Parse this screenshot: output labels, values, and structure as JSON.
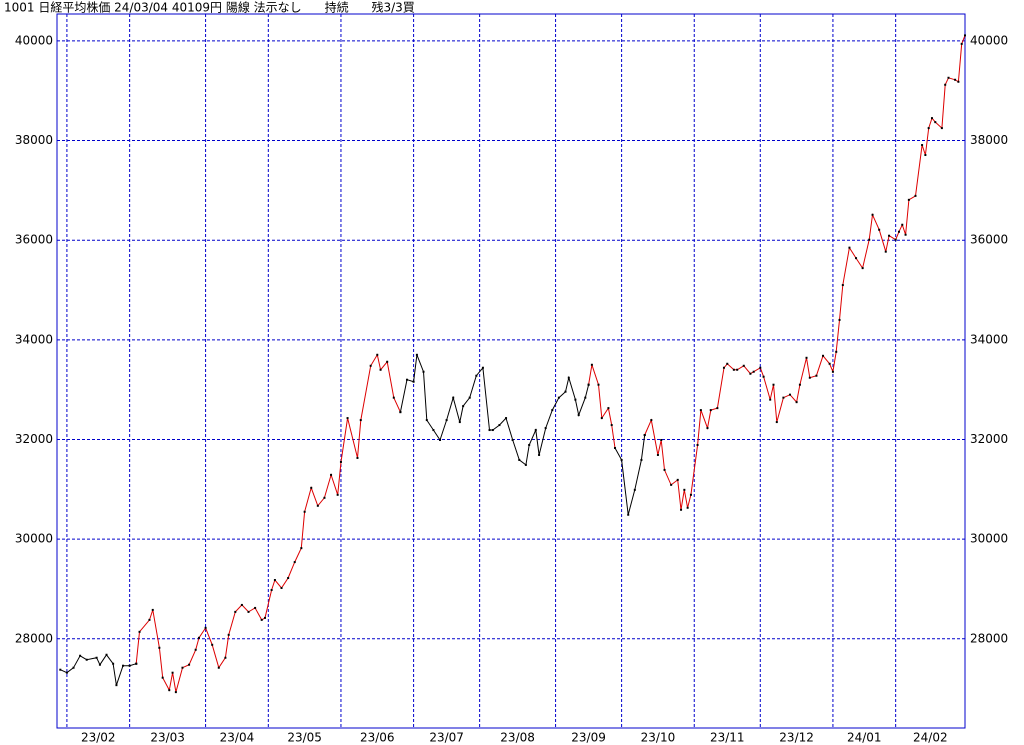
{
  "chart_data": {
    "type": "line",
    "title": "1001 日経平均株価 24/03/04 40109円 陽線 法示なし      持続      残3/3買",
    "xlim": [
      0,
      275
    ],
    "xticks": [
      {
        "value": 3,
        "label": "23/02"
      },
      {
        "value": 22,
        "label": "23/03"
      },
      {
        "value": 45,
        "label": "23/04"
      },
      {
        "value": 64,
        "label": "23/05"
      },
      {
        "value": 86,
        "label": "23/06"
      },
      {
        "value": 108,
        "label": "23/07"
      },
      {
        "value": 128,
        "label": "23/08"
      },
      {
        "value": 151,
        "label": "23/09"
      },
      {
        "value": 171,
        "label": "23/10"
      },
      {
        "value": 193,
        "label": "23/11"
      },
      {
        "value": 213,
        "label": "23/12"
      },
      {
        "value": 235,
        "label": "24/01"
      },
      {
        "value": 254,
        "label": "24/02"
      }
    ],
    "ylim": [
      26210,
      40540
    ],
    "yticks": [
      28000,
      30000,
      32000,
      34000,
      36000,
      38000,
      40000
    ],
    "grid": true,
    "grid_color": "#0000cc",
    "frame_color": "#0000cc",
    "marker_color": "#000000",
    "series": [
      {
        "color": "#000000",
        "x": [
          1,
          3,
          5,
          7,
          9,
          12,
          13,
          15,
          17,
          18,
          20,
          22,
          24
        ],
        "values": [
          27380,
          27320,
          27420,
          27660,
          27580,
          27620,
          27480,
          27680,
          27500,
          27070,
          27460,
          27460,
          27500
        ]
      },
      {
        "color": "#dd0000",
        "x": [
          24,
          25,
          28,
          29,
          31,
          32,
          34,
          35,
          36,
          38,
          40,
          42,
          43,
          45,
          47,
          49,
          51,
          52,
          54,
          56,
          58,
          60,
          62,
          63,
          65,
          66,
          68,
          70,
          72,
          74,
          75,
          77,
          79,
          81,
          83,
          85,
          86,
          88,
          91,
          92,
          95,
          97,
          98,
          100,
          102,
          104
        ],
        "values": [
          27500,
          28140,
          28380,
          28580,
          27820,
          27220,
          26970,
          27320,
          26930,
          27420,
          27480,
          27780,
          28020,
          28220,
          27880,
          27420,
          27620,
          28080,
          28540,
          28680,
          28540,
          28620,
          28380,
          28420,
          28980,
          29180,
          29020,
          29220,
          29540,
          29820,
          30550,
          31030,
          30670,
          30830,
          31290,
          30890,
          31550,
          32430,
          31630,
          32390,
          33480,
          33700,
          33400,
          33560,
          32840,
          32550
        ]
      },
      {
        "color": "#000000",
        "x": [
          104,
          106,
          108,
          109,
          111,
          112,
          114,
          116,
          118,
          120,
          122,
          123,
          125,
          127,
          129,
          131,
          132,
          134,
          136,
          138,
          140,
          142,
          143,
          145,
          146,
          148,
          150,
          152,
          154,
          155,
          157,
          158,
          160,
          161
        ],
        "values": [
          32550,
          33200,
          33160,
          33700,
          33360,
          32390,
          32190,
          31990,
          32390,
          32840,
          32350,
          32670,
          32840,
          33280,
          33440,
          32190,
          32190,
          32290,
          32430,
          31990,
          31590,
          31490,
          31890,
          32190,
          31690,
          32230,
          32590,
          32840,
          32960,
          33240,
          32800,
          32490,
          32840,
          33100
        ]
      },
      {
        "color": "#dd0000",
        "x": [
          161,
          162,
          164,
          165,
          167,
          168,
          169
        ],
        "values": [
          33100,
          33500,
          33100,
          32430,
          32630,
          32290,
          31830
        ]
      },
      {
        "color": "#000000",
        "x": [
          169,
          171,
          173,
          175,
          177,
          178
        ],
        "values": [
          31830,
          31590,
          30490,
          30990,
          31590,
          32090
        ]
      },
      {
        "color": "#dd0000",
        "x": [
          178,
          180,
          182,
          183,
          184,
          186,
          188,
          189,
          190,
          191,
          192,
          194,
          195,
          197,
          198,
          200,
          202,
          203,
          205,
          206,
          208,
          210,
          211,
          213,
          214,
          216,
          217,
          218,
          220,
          222,
          224,
          225,
          227,
          228,
          230,
          232,
          234,
          235,
          236,
          237,
          238,
          240,
          242,
          244,
          246,
          247,
          249,
          251,
          252,
          254,
          255,
          256,
          257,
          258,
          260,
          262,
          263,
          264,
          265,
          266,
          268,
          269,
          270,
          272,
          273,
          274,
          275
        ],
        "values": [
          32090,
          32390,
          31690,
          31990,
          31390,
          31090,
          31190,
          30590,
          30990,
          30630,
          30890,
          31890,
          32590,
          32230,
          32590,
          32630,
          33440,
          33520,
          33400,
          33400,
          33480,
          33320,
          33360,
          33440,
          33260,
          32800,
          33100,
          32350,
          32840,
          32900,
          32750,
          33100,
          33640,
          33240,
          33280,
          33680,
          33520,
          33360,
          33760,
          34400,
          35100,
          35850,
          35640,
          35440,
          36010,
          36510,
          36210,
          35770,
          36090,
          36010,
          36170,
          36310,
          36110,
          36810,
          36890,
          37910,
          37710,
          38250,
          38450,
          38370,
          38250,
          39120,
          39260,
          39220,
          39180,
          39940,
          40110
        ]
      }
    ]
  }
}
